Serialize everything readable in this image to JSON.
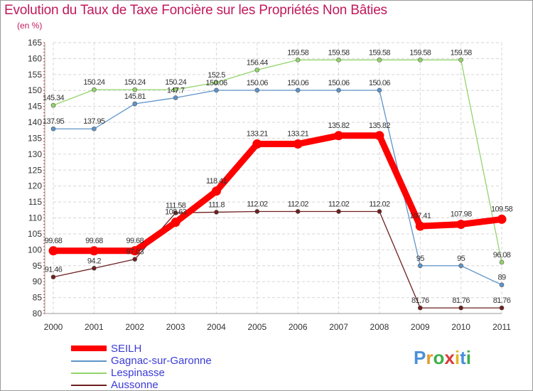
{
  "chart_data": {
    "type": "line",
    "title": "Evolution du Taux de Taxe Foncière sur les Propriétés Non Bâties",
    "subtitle": "(en %)",
    "xlabel": "",
    "ylabel": "(en %)",
    "ylim": [
      80,
      165
    ],
    "yticks": [
      "80",
      "85",
      "90",
      "95",
      "100",
      "105",
      "110",
      "115",
      "120",
      "125",
      "130",
      "135",
      "140",
      "145",
      "150",
      "155",
      "160",
      "165"
    ],
    "categories": [
      "2000",
      "2001",
      "2002",
      "2003",
      "2004",
      "2005",
      "2006",
      "2007",
      "2008",
      "2009",
      "2010",
      "2011"
    ],
    "grid": true,
    "legend_position": "bottom-left",
    "series": [
      {
        "name": "Lespinasse",
        "color": "#94d46b",
        "values": [
          145.34,
          150.24,
          150.24,
          150.24,
          152.5,
          156.44,
          159.58,
          159.58,
          159.58,
          159.58,
          159.58,
          96.08
        ],
        "labels": [
          "145.34",
          "150.24",
          "150.24",
          "150.24",
          "152.5",
          "156.44",
          "159.58",
          "159.58",
          "159.58",
          "159.58",
          "159.58",
          "96.08"
        ]
      },
      {
        "name": "Gagnac-sur-Garonne",
        "color": "#5d94c9",
        "values": [
          137.95,
          137.95,
          145.81,
          147.7,
          150.06,
          150.06,
          150.06,
          150.06,
          150.06,
          95,
          95,
          89
        ],
        "labels": [
          "137.95",
          "137.95",
          "145.81",
          "147.7",
          "150.06",
          "150.06",
          "150.06",
          "150.06",
          "150.06",
          "95",
          "95",
          "89"
        ]
      },
      {
        "name": "Aussonne",
        "color": "#6e1f1f",
        "values": [
          91.46,
          94.2,
          97.03,
          111.58,
          111.8,
          112.02,
          112.02,
          112.02,
          112.02,
          81.76,
          81.76,
          81.76
        ],
        "labels": [
          "91.46",
          "94.2",
          "97.03",
          "111.58",
          "111.8",
          "112.02",
          "112.02",
          "112.02",
          "112.02",
          "81.76",
          "81.76",
          "81.76"
        ]
      },
      {
        "name": "SEILH",
        "color": "#ff0000",
        "values": [
          99.68,
          99.68,
          99.68,
          108.63,
          118.41,
          133.21,
          133.21,
          135.82,
          135.82,
          107.41,
          107.98,
          109.58
        ],
        "labels": [
          "99.68",
          "99.68",
          "99.68",
          "108.63",
          "118.41",
          "133.21",
          "133.21",
          "135.82",
          "135.82",
          "107.41",
          "107.98",
          "109.58"
        ]
      }
    ]
  },
  "legend": {
    "items": [
      {
        "label": "SEILH",
        "color": "#ff0000"
      },
      {
        "label": "Gagnac-sur-Garonne",
        "color": "#5d94c9"
      },
      {
        "label": "Lespinasse",
        "color": "#94d46b"
      },
      {
        "label": "Aussonne",
        "color": "#6e1f1f"
      }
    ]
  },
  "logo": {
    "parts": [
      "P",
      "r",
      "o",
      "x",
      "i",
      "t",
      "i"
    ]
  }
}
